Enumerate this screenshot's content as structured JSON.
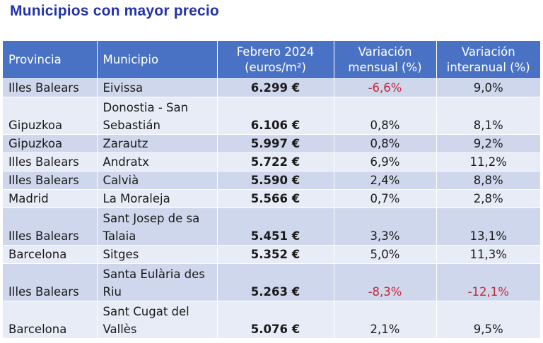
{
  "title": "Municipios con mayor precio",
  "headers": {
    "provincia": "Provincia",
    "municipio": "Municipio",
    "precio": "Febrero 2024 (euros/m²)",
    "mensual": "Variación mensual (%)",
    "interanual": "Variación interanual (%)"
  },
  "rows": [
    {
      "provincia": "Illes Balears",
      "municipio": "Eivissa",
      "precio": "6.299 €",
      "mensual": "-6,6%",
      "interanual": "9,0%"
    },
    {
      "provincia": "Gipuzkoa",
      "municipio": "Donostia - San Sebastián",
      "precio": "6.106 €",
      "mensual": "0,8%",
      "interanual": "8,1%"
    },
    {
      "provincia": "Gipuzkoa",
      "municipio": "Zarautz",
      "precio": "5.997 €",
      "mensual": "0,8%",
      "interanual": "9,2%"
    },
    {
      "provincia": "Illes Balears",
      "municipio": "Andratx",
      "precio": "5.722 €",
      "mensual": "6,9%",
      "interanual": "11,2%"
    },
    {
      "provincia": "Illes Balears",
      "municipio": "Calvià",
      "precio": "5.590 €",
      "mensual": "2,4%",
      "interanual": "8,8%"
    },
    {
      "provincia": "Madrid",
      "municipio": "La Moraleja",
      "precio": "5.566 €",
      "mensual": "0,7%",
      "interanual": "2,8%"
    },
    {
      "provincia": "Illes Balears",
      "municipio": "Sant Josep de sa Talaia",
      "precio": "5.451 €",
      "mensual": "3,3%",
      "interanual": "13,1%"
    },
    {
      "provincia": "Barcelona",
      "municipio": "Sitges",
      "precio": "5.352 €",
      "mensual": "5,0%",
      "interanual": "11,3%"
    },
    {
      "provincia": "Illes Balears",
      "municipio": "Santa Eulària des Riu",
      "precio": "5.263 €",
      "mensual": "-8,3%",
      "interanual": "-12,1%"
    },
    {
      "provincia": "Barcelona",
      "municipio": "Sant Cugat del Vallès",
      "precio": "5.076 €",
      "mensual": "2,1%",
      "interanual": "9,5%"
    }
  ],
  "colors": {
    "title": "#2233aa",
    "header_bg": "#4a72c4",
    "row_odd": "#cfd7ec",
    "row_even": "#e8ecf6",
    "negative": "#c0293a"
  }
}
